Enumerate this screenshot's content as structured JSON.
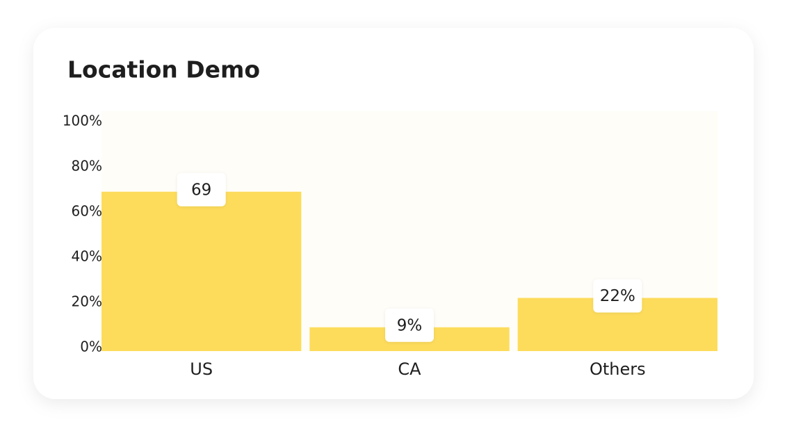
{
  "chart_data": {
    "type": "bar",
    "title": "Location Demo",
    "categories": [
      "US",
      "CA",
      "Others"
    ],
    "values": [
      69,
      9,
      22
    ],
    "value_labels": [
      "69",
      "9%",
      "22%"
    ],
    "color": "#fddc5c",
    "ylim": [
      0,
      100
    ],
    "yticks": [
      {
        "value": 0,
        "label": "0%"
      },
      {
        "value": 20,
        "label": "20%"
      },
      {
        "value": 40,
        "label": "40%"
      },
      {
        "value": 60,
        "label": "60%"
      },
      {
        "value": 80,
        "label": "80%"
      },
      {
        "value": 100,
        "label": "100%"
      }
    ]
  }
}
